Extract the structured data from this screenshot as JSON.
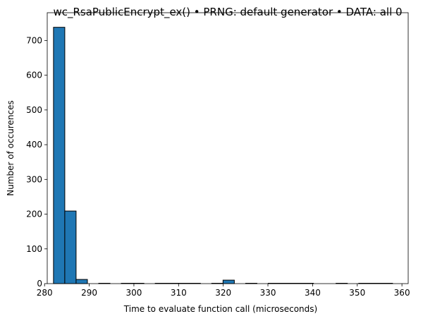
{
  "chart_data": {
    "type": "bar",
    "title": "wc_RsaPublicEncrypt_ex() • PRNG: default generator • DATA: all 0",
    "xlabel": "Time to evaluate function call (microseconds)",
    "ylabel": "Number of occurences",
    "xlim": [
      280.6,
      361.4
    ],
    "ylim": [
      0,
      780
    ],
    "xticks": [
      280,
      290,
      300,
      310,
      320,
      330,
      340,
      350,
      360
    ],
    "yticks": [
      0,
      100,
      200,
      300,
      400,
      500,
      600,
      700
    ],
    "bin_width": 2.53,
    "bins": [
      {
        "x0": 282.0,
        "count": 738
      },
      {
        "x0": 284.53,
        "count": 209
      },
      {
        "x0": 287.06,
        "count": 12
      },
      {
        "x0": 289.59,
        "count": 0
      },
      {
        "x0": 292.12,
        "count": 1
      },
      {
        "x0": 294.65,
        "count": 0
      },
      {
        "x0": 297.18,
        "count": 1
      },
      {
        "x0": 299.71,
        "count": 1
      },
      {
        "x0": 302.24,
        "count": 0
      },
      {
        "x0": 304.77,
        "count": 1
      },
      {
        "x0": 307.3,
        "count": 1
      },
      {
        "x0": 309.83,
        "count": 1
      },
      {
        "x0": 312.36,
        "count": 1
      },
      {
        "x0": 314.89,
        "count": 0
      },
      {
        "x0": 317.42,
        "count": 1
      },
      {
        "x0": 319.95,
        "count": 10
      },
      {
        "x0": 322.48,
        "count": 0
      },
      {
        "x0": 325.01,
        "count": 1
      },
      {
        "x0": 327.54,
        "count": 0
      },
      {
        "x0": 330.07,
        "count": 1
      },
      {
        "x0": 332.6,
        "count": 1
      },
      {
        "x0": 335.13,
        "count": 1
      },
      {
        "x0": 337.66,
        "count": 1
      },
      {
        "x0": 340.19,
        "count": 0
      },
      {
        "x0": 342.72,
        "count": 0
      },
      {
        "x0": 345.25,
        "count": 1
      },
      {
        "x0": 347.78,
        "count": 0
      },
      {
        "x0": 350.31,
        "count": 1
      },
      {
        "x0": 352.84,
        "count": 1
      },
      {
        "x0": 355.37,
        "count": 1
      }
    ],
    "bar_color": "#1f77b4",
    "edge_color": "#000000",
    "grid": false,
    "legend": "none"
  }
}
